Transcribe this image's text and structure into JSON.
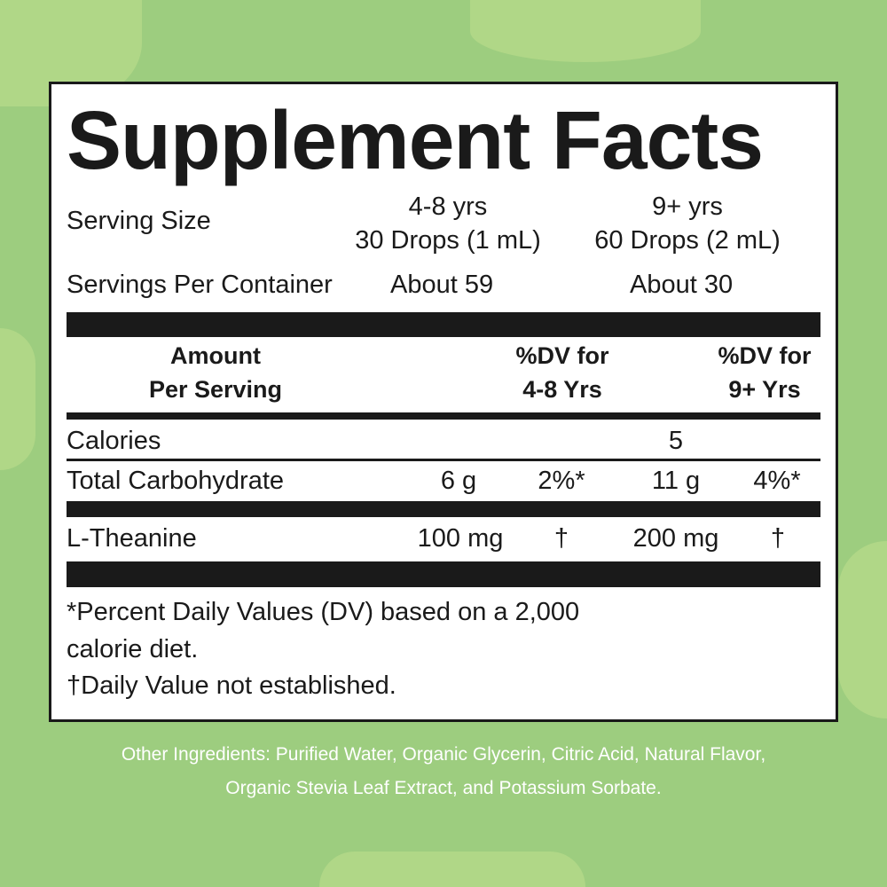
{
  "title": "Supplement Facts",
  "serving": {
    "label": "Serving Size",
    "col1_age": "4-8 yrs",
    "col1_size": "30 Drops (1 mL)",
    "col2_age": "9+ yrs",
    "col2_size": "60 Drops (2 mL)"
  },
  "servings_per_container": {
    "label": "Servings Per Container",
    "col1": "About 59",
    "col2": "About 30"
  },
  "headers": {
    "amount_1": "Amount",
    "amount_2": "Per Serving",
    "dv1_1": "%DV for",
    "dv1_2": "4-8 Yrs",
    "dv2_1": "%DV for",
    "dv2_2": "9+ Yrs"
  },
  "rows": [
    {
      "name": "Calories",
      "value": "5"
    },
    {
      "name": "Total Carbohydrate",
      "amt1": "6 g",
      "dv1": "2%*",
      "amt2": "11 g",
      "dv2": "4%*"
    },
    {
      "name": "L-Theanine",
      "amt1": "100 mg",
      "dv1": "†",
      "amt2": "200 mg",
      "dv2": "†"
    }
  ],
  "footnotes": {
    "line1": "*Percent Daily Values (DV) based on a 2,000",
    "line2": "calorie diet.",
    "line3": "†Daily Value not established."
  },
  "other_ingredients": {
    "line1": "Other Ingredients: Purified Water, Organic Glycerin, Citric Acid, Natural Flavor,",
    "line2": "Organic Stevia Leaf Extract, and Potassium Sorbate."
  },
  "colors": {
    "background": "#9dcd7f",
    "panel": "#ffffff",
    "ink": "#1a1a1a"
  }
}
